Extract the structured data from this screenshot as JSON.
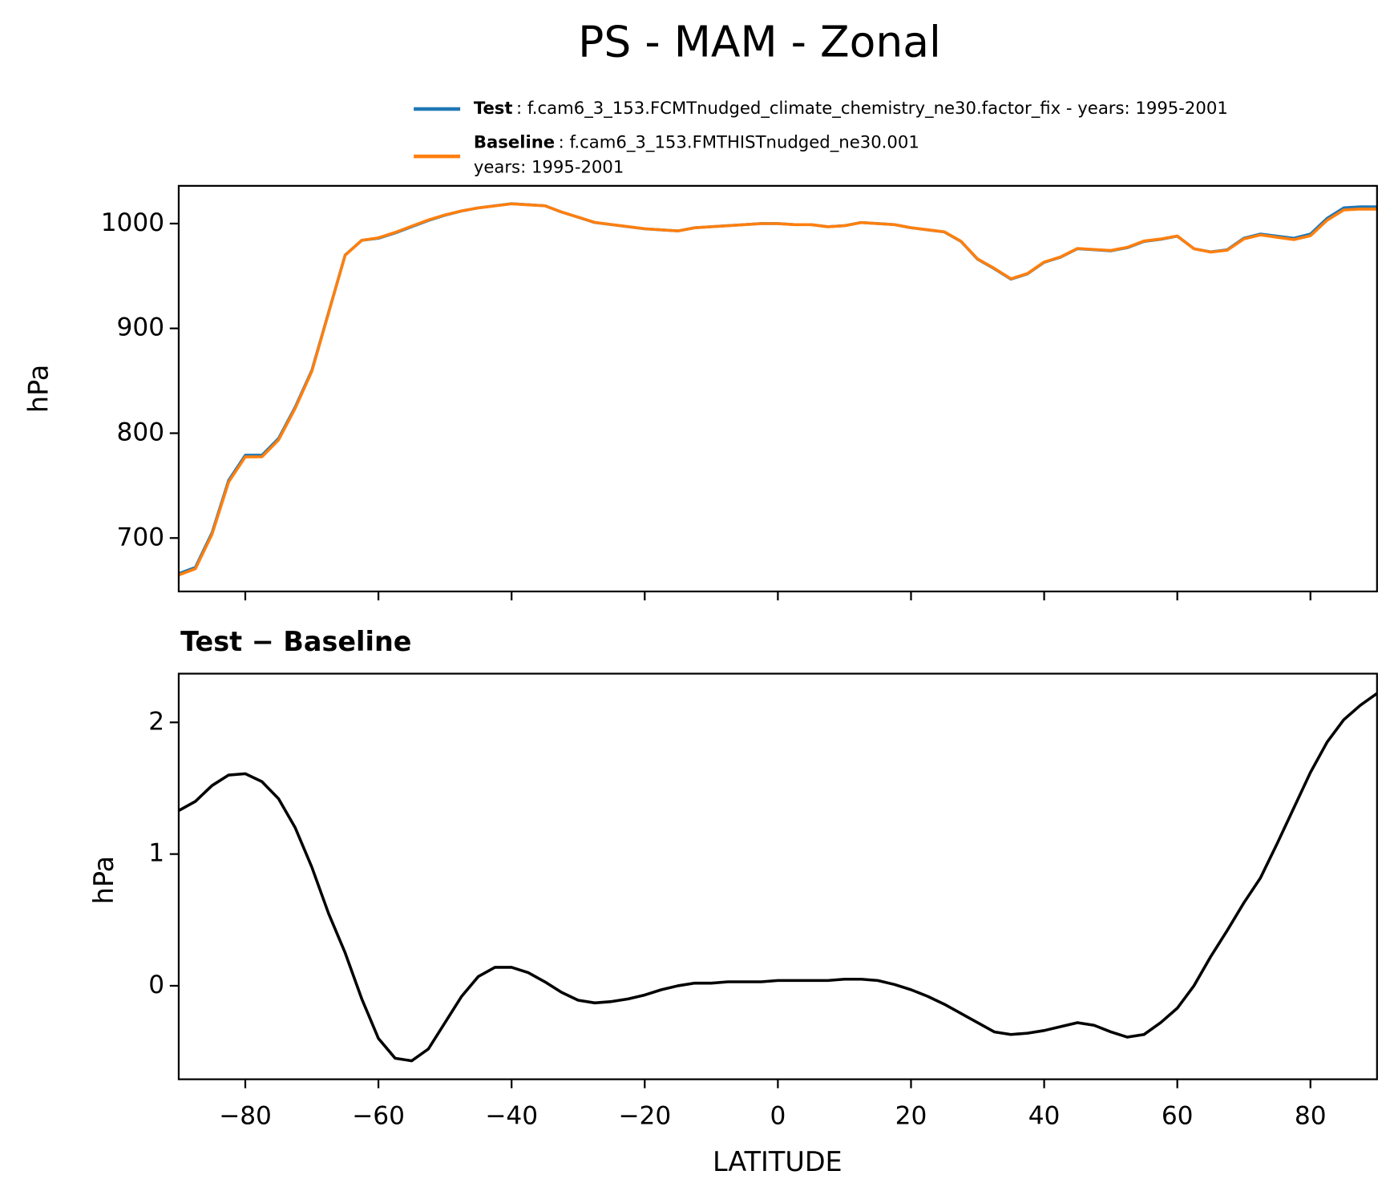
{
  "chart_data": [
    {
      "type": "line",
      "title": "PS - MAM - Zonal",
      "ylabel": "hPa",
      "x": [
        -90,
        -87.5,
        -85,
        -82.5,
        -80,
        -77.5,
        -75,
        -72.5,
        -70,
        -67.5,
        -65,
        -62.5,
        -60,
        -57.5,
        -55,
        -52.5,
        -50,
        -47.5,
        -45,
        -42.5,
        -40,
        -37.5,
        -35,
        -32.5,
        -30,
        -27.5,
        -25,
        -22.5,
        -20,
        -17.5,
        -15,
        -12.5,
        -10,
        -7.5,
        -5,
        -2.5,
        0,
        2.5,
        5,
        7.5,
        10,
        12.5,
        15,
        17.5,
        20,
        22.5,
        25,
        27.5,
        30,
        32.5,
        35,
        37.5,
        40,
        42.5,
        45,
        47.5,
        50,
        52.5,
        55,
        57.5,
        60,
        62.5,
        65,
        67.5,
        70,
        72.5,
        75,
        77.5,
        80,
        82.5,
        85,
        87.5,
        90
      ],
      "series": [
        {
          "name": "Test",
          "description": ": f.cam6_3_153.FCMTnudged_climate_chemistry_ne30.factor_fix - years: 1995-2001",
          "color": "#1f77b4",
          "values": [
            666,
            672,
            705,
            755,
            779,
            779,
            795,
            825,
            860,
            915,
            970,
            984,
            986,
            991,
            997,
            1003,
            1008,
            1012,
            1015,
            1017,
            1019,
            1018,
            1017,
            1011,
            1006,
            1001,
            999,
            997,
            995,
            994,
            993,
            996,
            997,
            998,
            999,
            1000,
            1000,
            999,
            999,
            997,
            998,
            1001,
            1000,
            999,
            996,
            994,
            992,
            983,
            966,
            957,
            947,
            952,
            963,
            968,
            976,
            975,
            974,
            977,
            983,
            985,
            988,
            976,
            973,
            975,
            986,
            990,
            988,
            986,
            990,
            1005,
            1015,
            1016,
            1016
          ]
        },
        {
          "name": "Baseline",
          "description_lines": [
            ": f.cam6_3_153.FMTHISTnudged_ne30.001",
            "years: 1995-2001"
          ],
          "color": "#ff7f0e",
          "values": [
            664.67,
            670.6,
            703.48,
            753.4,
            777.39,
            777.45,
            793.58,
            823.8,
            859.1,
            914.45,
            969.75,
            984.1,
            986.4,
            991.55,
            997.57,
            1003.48,
            1008.28,
            1012.08,
            1014.93,
            1016.86,
            1018.86,
            1017.9,
            1016.97,
            1011.05,
            1006.11,
            1001.13,
            999.12,
            997.1,
            995.07,
            994.03,
            993,
            995.98,
            996.98,
            997.97,
            998.97,
            999.97,
            999.96,
            998.96,
            998.96,
            996.96,
            997.95,
            1000.95,
            999.96,
            998.99,
            996.03,
            994.08,
            992.14,
            983.21,
            966.28,
            957.35,
            947.37,
            952.36,
            963.34,
            968.31,
            976.28,
            975.3,
            974.35,
            977.39,
            983.37,
            985.28,
            988.17,
            976,
            972.78,
            974.58,
            985.37,
            989.18,
            986.92,
            984.65,
            988.38,
            1003.15,
            1012.98,
            1013.87,
            1013.78
          ]
        }
      ],
      "xlim": [
        -90,
        90
      ],
      "xticks": [
        -80,
        -60,
        -40,
        -20,
        0,
        20,
        40,
        60,
        80
      ],
      "ylim": [
        649,
        1036
      ],
      "yticks": [
        700,
        800,
        900,
        1000
      ]
    },
    {
      "type": "line",
      "title": "Test − Baseline",
      "xlabel": "LATITUDE",
      "ylabel": "hPa",
      "x": [
        -90,
        -87.5,
        -85,
        -82.5,
        -80,
        -77.5,
        -75,
        -72.5,
        -70,
        -67.5,
        -65,
        -62.5,
        -60,
        -57.5,
        -55,
        -52.5,
        -50,
        -47.5,
        -45,
        -42.5,
        -40,
        -37.5,
        -35,
        -32.5,
        -30,
        -27.5,
        -25,
        -22.5,
        -20,
        -17.5,
        -15,
        -12.5,
        -10,
        -7.5,
        -5,
        -2.5,
        0,
        2.5,
        5,
        7.5,
        10,
        12.5,
        15,
        17.5,
        20,
        22.5,
        25,
        27.5,
        30,
        32.5,
        35,
        37.5,
        40,
        42.5,
        45,
        47.5,
        50,
        52.5,
        55,
        57.5,
        60,
        62.5,
        65,
        67.5,
        70,
        72.5,
        75,
        77.5,
        80,
        82.5,
        85,
        87.5,
        90
      ],
      "color": "#000000",
      "values": [
        1.33,
        1.4,
        1.52,
        1.6,
        1.61,
        1.55,
        1.42,
        1.2,
        0.9,
        0.55,
        0.25,
        -0.1,
        -0.4,
        -0.55,
        -0.57,
        -0.48,
        -0.28,
        -0.08,
        0.07,
        0.14,
        0.14,
        0.1,
        0.03,
        -0.05,
        -0.11,
        -0.13,
        -0.12,
        -0.1,
        -0.07,
        -0.03,
        0,
        0.02,
        0.02,
        0.03,
        0.03,
        0.03,
        0.04,
        0.04,
        0.04,
        0.04,
        0.05,
        0.05,
        0.04,
        0.01,
        -0.03,
        -0.08,
        -0.14,
        -0.21,
        -0.28,
        -0.35,
        -0.37,
        -0.36,
        -0.34,
        -0.31,
        -0.28,
        -0.3,
        -0.35,
        -0.39,
        -0.37,
        -0.28,
        -0.17,
        0,
        0.22,
        0.42,
        0.63,
        0.82,
        1.08,
        1.35,
        1.62,
        1.85,
        2.02,
        2.13,
        2.22
      ],
      "xlim": [
        -90,
        90
      ],
      "xticks": [
        {
          "value": -80,
          "label": "−80"
        },
        {
          "value": -60,
          "label": "−60"
        },
        {
          "value": -40,
          "label": "−40"
        },
        {
          "value": -20,
          "label": "−20"
        },
        0,
        20,
        40,
        60,
        80
      ],
      "ylim": [
        -0.71,
        2.37
      ],
      "yticks": [
        0,
        1,
        2
      ]
    }
  ]
}
